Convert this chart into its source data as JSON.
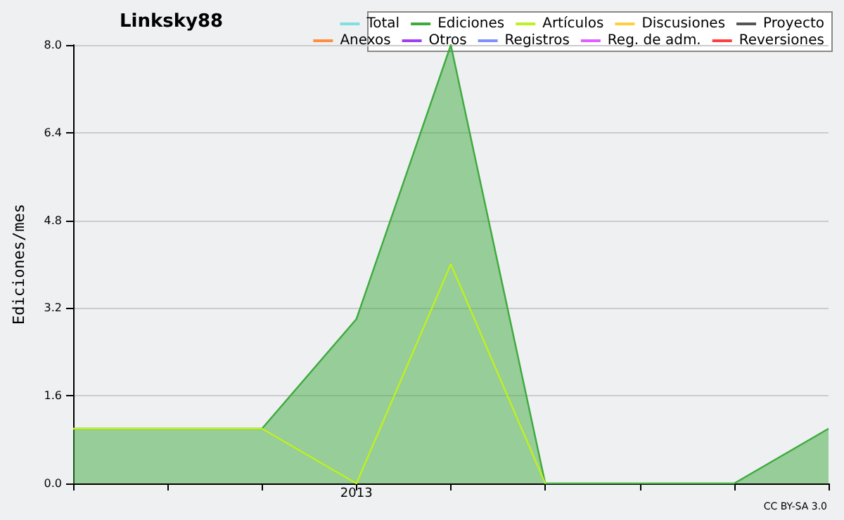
{
  "chart_data": {
    "type": "line",
    "title": "Linksky88",
    "ylabel": "Ediciones/mes",
    "categories": [
      null,
      null,
      null,
      "2013",
      null,
      null,
      null,
      null,
      null
    ],
    "series": [
      {
        "name": "Total",
        "color": "#7fdfdf",
        "values": [
          null,
          null,
          null,
          null,
          null,
          null,
          null,
          null,
          null
        ]
      },
      {
        "name": "Ediciones",
        "color": "#3daa3d",
        "type": "area",
        "values": [
          1,
          1,
          1,
          3,
          8,
          0,
          0,
          0,
          1
        ]
      },
      {
        "name": "Artículos",
        "color": "#bff020",
        "values": [
          1,
          1,
          1,
          0,
          4,
          0,
          null,
          null,
          null
        ]
      },
      {
        "name": "Discusiones",
        "color": "#ffcf3f",
        "values": [
          null,
          null,
          null,
          null,
          null,
          null,
          null,
          null,
          null
        ]
      },
      {
        "name": "Proyecto",
        "color": "#555555",
        "values": [
          null,
          null,
          null,
          null,
          null,
          null,
          null,
          null,
          null
        ]
      },
      {
        "name": "Anexos",
        "color": "#ff8f3f",
        "values": [
          null,
          null,
          null,
          null,
          null,
          null,
          null,
          null,
          null
        ]
      },
      {
        "name": "Otros",
        "color": "#9f3fef",
        "values": [
          null,
          null,
          null,
          null,
          null,
          null,
          null,
          null,
          null
        ]
      },
      {
        "name": "Registros",
        "color": "#7f8fff",
        "values": [
          null,
          null,
          null,
          null,
          null,
          null,
          null,
          null,
          null
        ]
      },
      {
        "name": "Reg. de adm.",
        "color": "#df5fff",
        "values": [
          null,
          null,
          null,
          null,
          null,
          null,
          null,
          null,
          null
        ]
      },
      {
        "name": "Reversiones",
        "color": "#ff3f3f",
        "values": [
          null,
          null,
          null,
          null,
          null,
          null,
          null,
          null,
          null
        ]
      }
    ],
    "ylim": [
      0,
      8
    ],
    "yticks": [
      {
        "value": 0,
        "label": "0.0"
      },
      {
        "value": 1.6,
        "label": "1.6"
      },
      {
        "value": 3.2,
        "label": "3.2"
      },
      {
        "value": 4.8,
        "label": "4.8"
      },
      {
        "value": 6.4,
        "label": "6.4"
      },
      {
        "value": 8,
        "label": "8.0"
      }
    ],
    "grid": "y",
    "legend": "top right",
    "marker": "none",
    "annotations": [
      "CC BY-SA 3.0"
    ]
  }
}
